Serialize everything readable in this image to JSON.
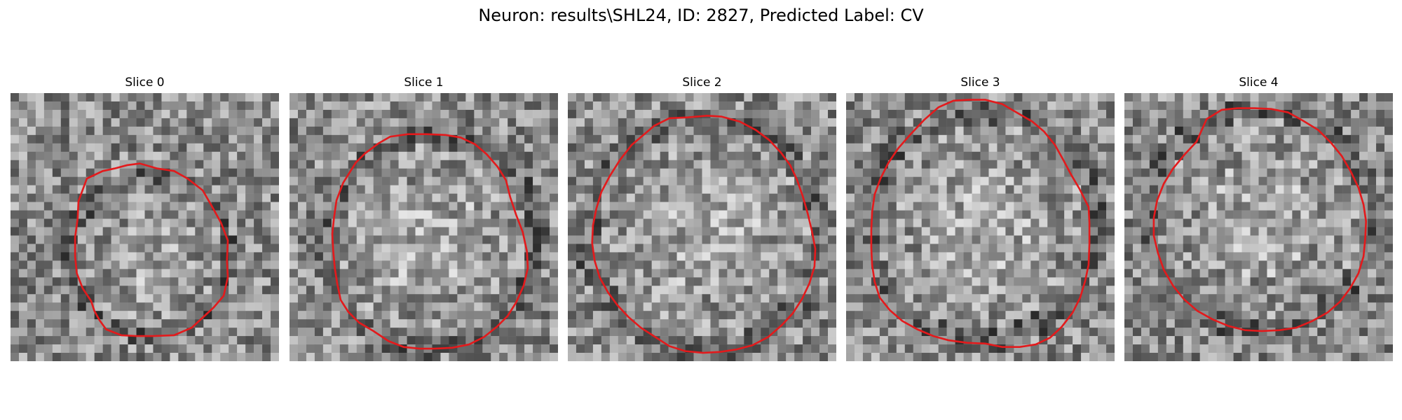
{
  "figure": {
    "title": "Neuron: results\\SHL24, ID: 2827, Predicted Label: CV",
    "contour_color": "#e31a1c",
    "colormap": "gray"
  },
  "panels": [
    {
      "title": "Slice 0"
    },
    {
      "title": "Slice 1"
    },
    {
      "title": "Slice 2"
    },
    {
      "title": "Slice 3"
    },
    {
      "title": "Slice 4"
    }
  ]
}
